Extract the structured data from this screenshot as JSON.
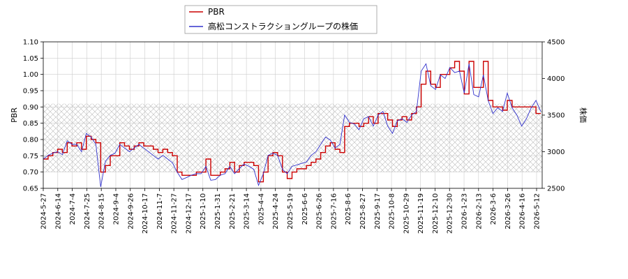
{
  "chart_data": {
    "type": "line",
    "title": "",
    "xlabel": "",
    "ylabel_left": "PBR",
    "ylabel_right": "株価",
    "legend_position": "top-center",
    "grid": true,
    "shaded_band_left": [
      0.7,
      0.91
    ],
    "ylim_left": [
      0.65,
      1.1
    ],
    "ylim_right": [
      2500,
      4500
    ],
    "yticks_left": [
      "0.65",
      "0.70",
      "0.75",
      "0.80",
      "0.85",
      "0.90",
      "0.95",
      "1.00",
      "1.05",
      "1.10"
    ],
    "yticks_right": [
      "2500",
      "3000",
      "3500",
      "4000",
      "4500"
    ],
    "x_ticks": [
      "2024-5-27",
      "2024-6-14",
      "2024-7-4",
      "2024-7-25",
      "2024-8-15",
      "2024-9-4",
      "2024-9-26",
      "2024-10-17",
      "2024-11-7",
      "2024-11-27",
      "2024-12-17",
      "2025-1-10",
      "2025-1-31",
      "2025-2-21",
      "2025-3-14",
      "2025-4-4",
      "2025-4-24",
      "2025-5-19",
      "2025-6-6",
      "2025-6-26",
      "2025-7-16",
      "2025-8-6",
      "2025-8-27",
      "2025-9-17",
      "2025-10-8",
      "2025-10-29",
      "2025-11-19",
      "2025-12-10",
      "2025-12-30",
      "2026-1-23",
      "2026-2-13",
      "2026-3-6",
      "2026-3-26",
      "2026-4-16",
      "2026-5-12"
    ],
    "series": [
      {
        "name": "PBR",
        "axis": "left",
        "color": "#cc0000",
        "values": [
          0.74,
          0.75,
          0.76,
          0.77,
          0.76,
          0.79,
          0.78,
          0.79,
          0.77,
          0.81,
          0.8,
          0.79,
          0.7,
          0.72,
          0.75,
          0.75,
          0.79,
          0.78,
          0.77,
          0.78,
          0.79,
          0.78,
          0.78,
          0.77,
          0.76,
          0.77,
          0.76,
          0.75,
          0.7,
          0.69,
          0.69,
          0.69,
          0.7,
          0.7,
          0.74,
          0.69,
          0.69,
          0.7,
          0.71,
          0.73,
          0.7,
          0.72,
          0.73,
          0.73,
          0.72,
          0.67,
          0.7,
          0.75,
          0.76,
          0.75,
          0.7,
          0.68,
          0.7,
          0.71,
          0.71,
          0.72,
          0.73,
          0.74,
          0.76,
          0.78,
          0.79,
          0.77,
          0.76,
          0.84,
          0.85,
          0.85,
          0.84,
          0.85,
          0.87,
          0.85,
          0.88,
          0.88,
          0.86,
          0.84,
          0.86,
          0.87,
          0.86,
          0.88,
          0.9,
          0.97,
          1.01,
          0.97,
          0.96,
          1.0,
          1.0,
          1.02,
          1.04,
          1.01,
          0.94,
          1.04,
          0.96,
          0.96,
          1.04,
          0.92,
          0.9,
          0.9,
          0.89,
          0.92,
          0.9,
          0.9,
          0.9,
          0.9,
          0.9,
          0.88,
          0.88
        ]
      },
      {
        "name": "高松コンストラクショングループの株価",
        "axis": "right",
        "color": "#3333cc",
        "values": [
          2900,
          2950,
          2980,
          3000,
          2960,
          3150,
          3100,
          3100,
          3000,
          3250,
          3200,
          3100,
          2520,
          2870,
          2950,
          2980,
          3100,
          3050,
          3000,
          3050,
          3100,
          3050,
          3000,
          2950,
          2900,
          2950,
          2900,
          2850,
          2720,
          2620,
          2650,
          2680,
          2700,
          2700,
          2800,
          2610,
          2620,
          2680,
          2700,
          2800,
          2700,
          2770,
          2830,
          2800,
          2760,
          2540,
          2700,
          2950,
          2980,
          2950,
          2760,
          2700,
          2800,
          2820,
          2840,
          2860,
          2950,
          3000,
          3100,
          3200,
          3160,
          3050,
          3100,
          3500,
          3400,
          3380,
          3300,
          3450,
          3480,
          3350,
          3500,
          3550,
          3350,
          3250,
          3420,
          3450,
          3400,
          3500,
          3550,
          4100,
          4200,
          3900,
          3850,
          4050,
          4000,
          4150,
          4080,
          4100,
          3800,
          4200,
          3780,
          3750,
          4050,
          3700,
          3520,
          3600,
          3550,
          3800,
          3600,
          3500,
          3350,
          3450,
          3600,
          3700,
          3550
        ]
      }
    ]
  }
}
